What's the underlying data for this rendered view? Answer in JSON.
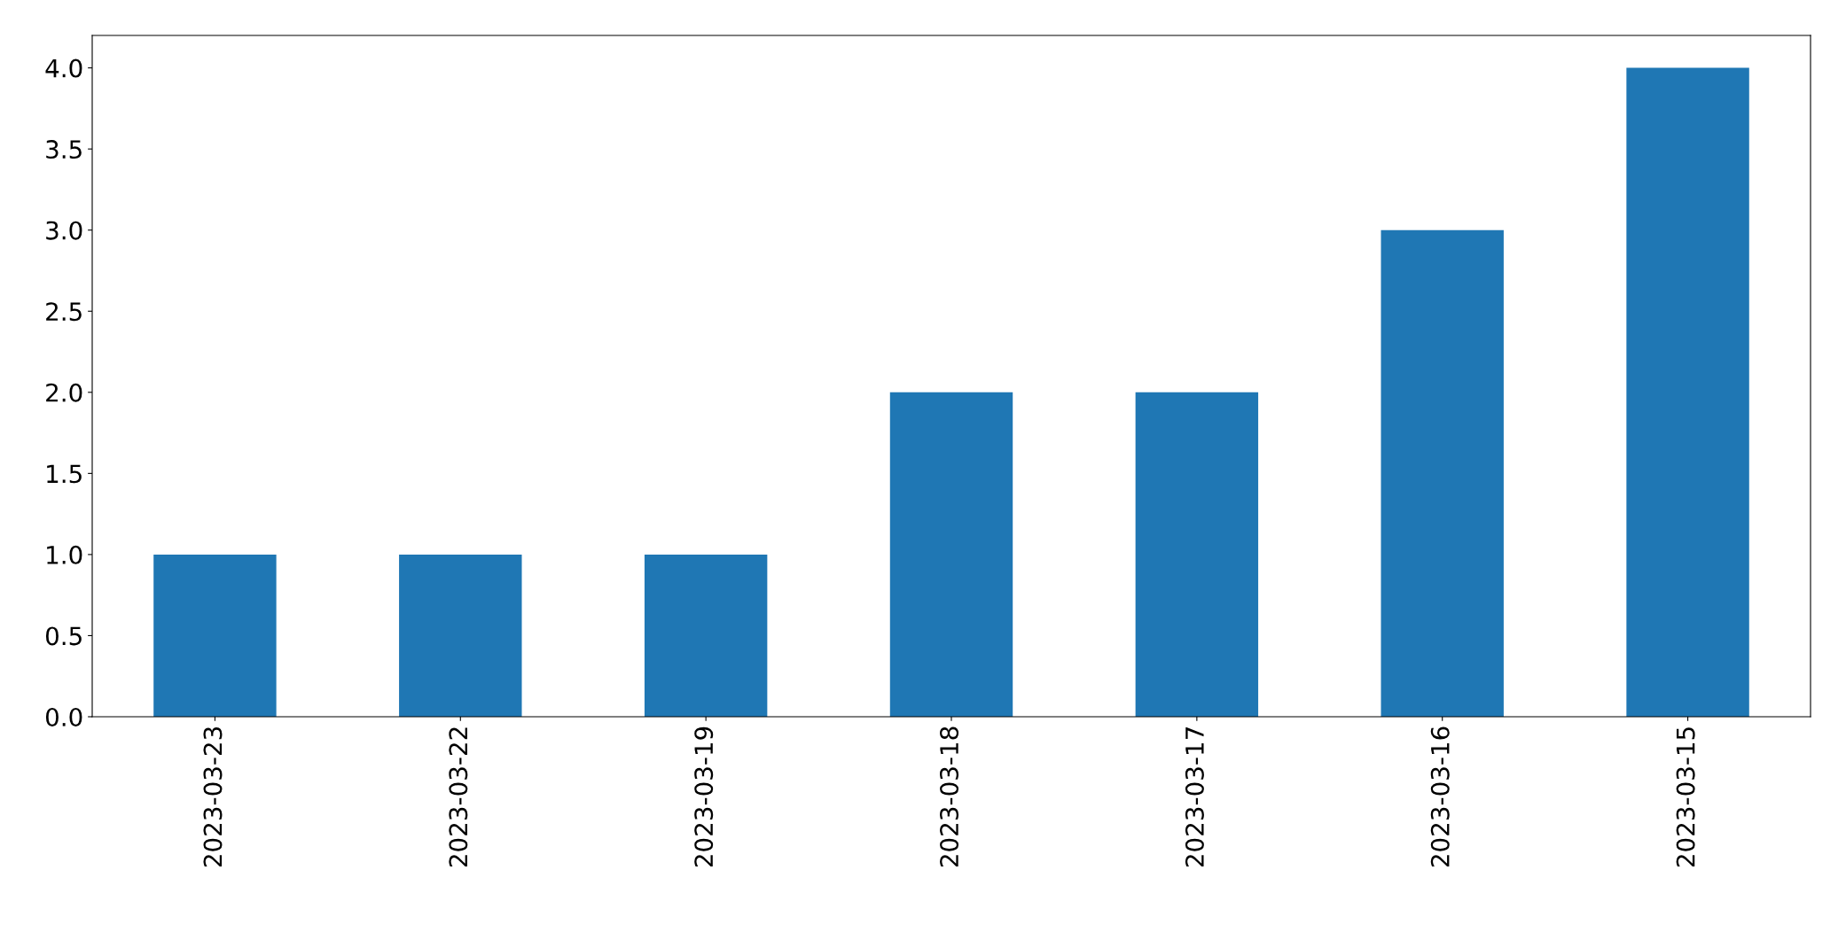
{
  "chart_data": {
    "type": "bar",
    "categories": [
      "2023-03-23",
      "2023-03-22",
      "2023-03-19",
      "2023-03-18",
      "2023-03-17",
      "2023-03-16",
      "2023-03-15"
    ],
    "values": [
      1,
      1,
      1,
      2,
      2,
      3,
      4
    ],
    "color": "#1f77b4",
    "ylim": [
      0,
      4.2
    ],
    "yticks": [
      {
        "value": 0,
        "label": "0.0"
      },
      {
        "value": 0.5,
        "label": "0.5"
      },
      {
        "value": 1,
        "label": "1.0"
      },
      {
        "value": 1.5,
        "label": "1.5"
      },
      {
        "value": 2,
        "label": "2.0"
      },
      {
        "value": 2.5,
        "label": "2.5"
      },
      {
        "value": 3,
        "label": "3.0"
      },
      {
        "value": 3.5,
        "label": "3.5"
      },
      {
        "value": 4,
        "label": "4.0"
      }
    ],
    "grid": false,
    "legend": false
  }
}
